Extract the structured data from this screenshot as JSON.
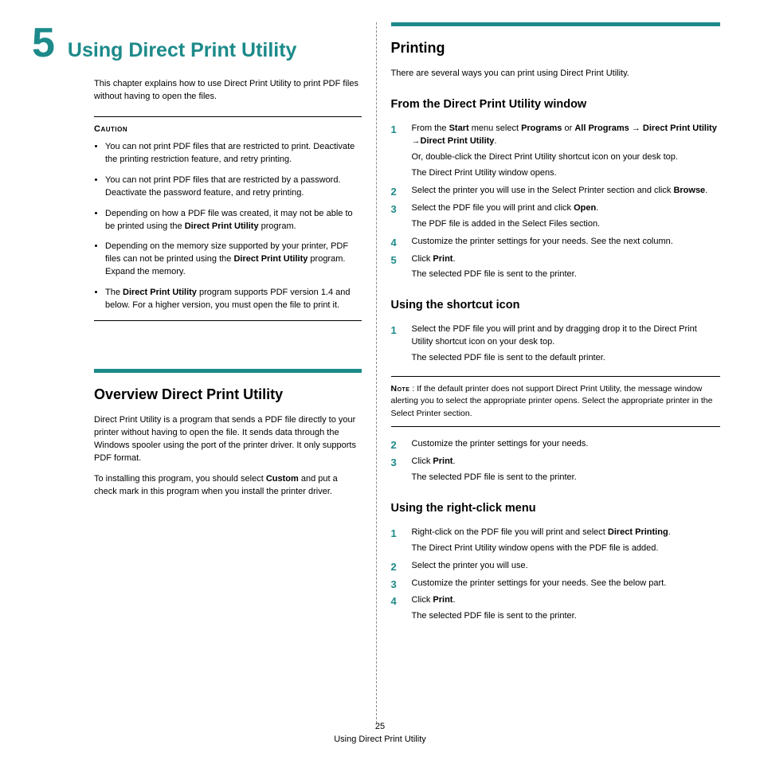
{
  "chapter": {
    "number": "5",
    "title": "Using Direct Print Utility"
  },
  "intro": "This chapter explains how to use Direct Print Utility to print PDF files without having to open the files.",
  "caution": {
    "label": "Caution",
    "items": [
      "You can not print PDF files that are restricted to print. Deactivate the printing restriction feature, and retry printing.",
      "You can not print PDF files that are restricted by a password. Deactivate the password feature, and retry printing.",
      "Depending on how a PDF file was created, it may not be able to be printed using the <b>Direct Print Utility</b> program.",
      "Depending on the memory size supported by your printer, PDF files can not be printed using the <b>Direct Print Utility</b> program. Expand the memory.",
      "The <b>Direct Print Utility</b> program supports PDF version 1.4 and below. For a higher version, you must open the file to print it."
    ]
  },
  "overview": {
    "heading": "Overview Direct Print Utility",
    "p1": "Direct Print Utility is a program that sends a PDF file directly to your printer without having to open the file. It sends data through the Windows spooler using the port of the printer driver. It only supports PDF format.",
    "p2": "To installing this program, you should select <b>Custom</b> and put a check mark in this program when you install the printer driver."
  },
  "printing": {
    "heading": "Printing",
    "intro": "There are several ways you can print using Direct Print Utility.",
    "sub1": {
      "heading": "From the Direct Print Utility window",
      "steps": [
        {
          "main": "From the <b>Start</b> menu select <b>Programs</b> or <b>All Programs</b> <span class=\"arrow\">→</span> <b>Direct Print Utility</b> <span class=\"arrow\">→</span><b>Direct Print Utility</b>.",
          "subs": [
            "Or, double-click the Direct Print Utility shortcut icon on your desk top.",
            "The Direct Print Utility window opens."
          ]
        },
        {
          "main": "Select the printer you will use in the Select Printer section and click <b>Browse</b>."
        },
        {
          "main": "Select the PDF file you will print and click <b>Open</b>.",
          "subs": [
            "The PDF file is added in the Select Files section."
          ]
        },
        {
          "main": "Customize the printer settings for your needs. See the next column."
        },
        {
          "main": "Click <b>Print</b>.",
          "subs": [
            "The selected PDF file is sent to the printer."
          ]
        }
      ]
    },
    "sub2": {
      "heading": "Using the shortcut icon",
      "steps1": [
        {
          "main": "Select the PDF file you will print and by dragging drop it to the Direct Print Utility shortcut icon on your desk top.",
          "subs": [
            "The selected PDF file is sent to the default printer."
          ]
        }
      ],
      "note": "If the default printer does not support Direct Print Utility, the message window alerting you to select the appropriate printer opens. Select the appropriate printer in the Select Printer section.",
      "steps2": [
        {
          "main": "Customize the printer settings for your needs."
        },
        {
          "main": "Click <b>Print</b>.",
          "subs": [
            "The selected PDF file is sent to the printer."
          ]
        }
      ]
    },
    "sub3": {
      "heading": "Using the right-click menu",
      "steps": [
        {
          "main": "Right-click on the PDF file you will print and select <b>Direct Printing</b>.",
          "subs": [
            "The Direct Print Utility window opens with the PDF file is added."
          ]
        },
        {
          "main": "Select the printer you will use."
        },
        {
          "main": "Customize the printer settings for your needs. See the below part."
        },
        {
          "main": "Click <b>Print</b>.",
          "subs": [
            "The selected PDF file is sent to the printer."
          ]
        }
      ]
    }
  },
  "footer": {
    "page": "25",
    "title": "Using Direct Print Utility"
  },
  "note_label": "Note"
}
